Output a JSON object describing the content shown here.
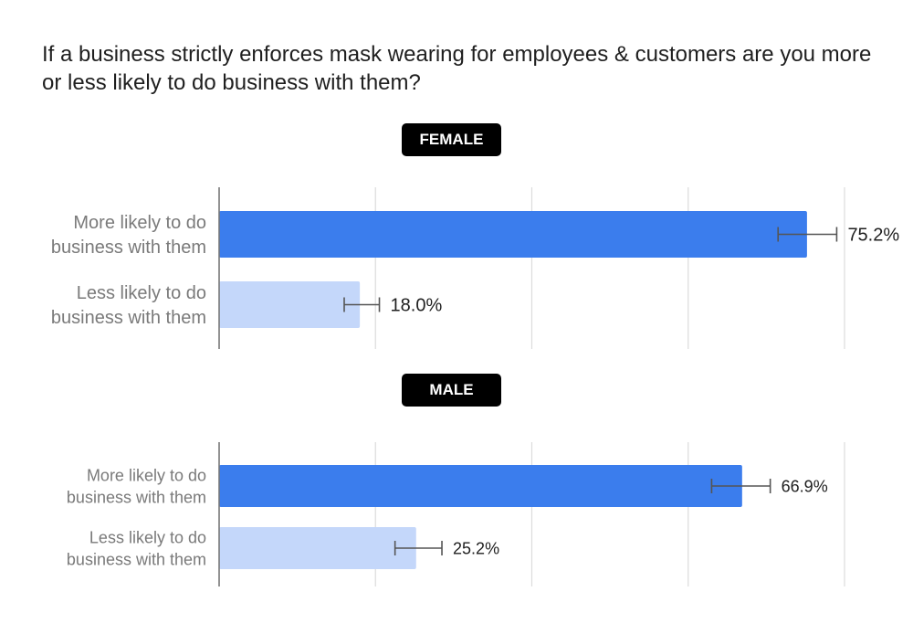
{
  "title": "If a business strictly enforces mask wearing for employees & customers are you more or less likely to do business with them?",
  "colors": {
    "more": "#3b7ded",
    "less": "#c4d7fa",
    "grid": "#dcdcdc",
    "axis": "#777777",
    "error": "#555555",
    "text": "#1f1f1f",
    "category_text": "#7a7a7a"
  },
  "chart_data": [
    {
      "type": "bar",
      "orientation": "horizontal",
      "title": "FEMALE",
      "categories": [
        "More likely to do business with them",
        "Less likely to do business with them"
      ],
      "category_lines": [
        [
          "More likely to do",
          "business with them"
        ],
        [
          "Less likely to do",
          "business with them"
        ]
      ],
      "values": [
        75.2,
        18.0
      ],
      "data_labels": [
        "75.2%",
        "18.0%"
      ],
      "error_bars": [
        [
          71.5,
          79.0
        ],
        [
          16.0,
          20.5
        ]
      ],
      "xlim": [
        0,
        80
      ],
      "grid": true
    },
    {
      "type": "bar",
      "orientation": "horizontal",
      "title": "MALE",
      "categories": [
        "More likely to do business with them",
        "Less likely to do business with them"
      ],
      "category_lines": [
        [
          "More likely to do",
          "business with them"
        ],
        [
          "Less likely to do",
          "business with them"
        ]
      ],
      "values": [
        66.9,
        25.2
      ],
      "data_labels": [
        "66.9%",
        "25.2%"
      ],
      "error_bars": [
        [
          63.0,
          70.5
        ],
        [
          22.5,
          28.5
        ]
      ],
      "xlim": [
        0,
        80
      ],
      "grid": true
    }
  ]
}
